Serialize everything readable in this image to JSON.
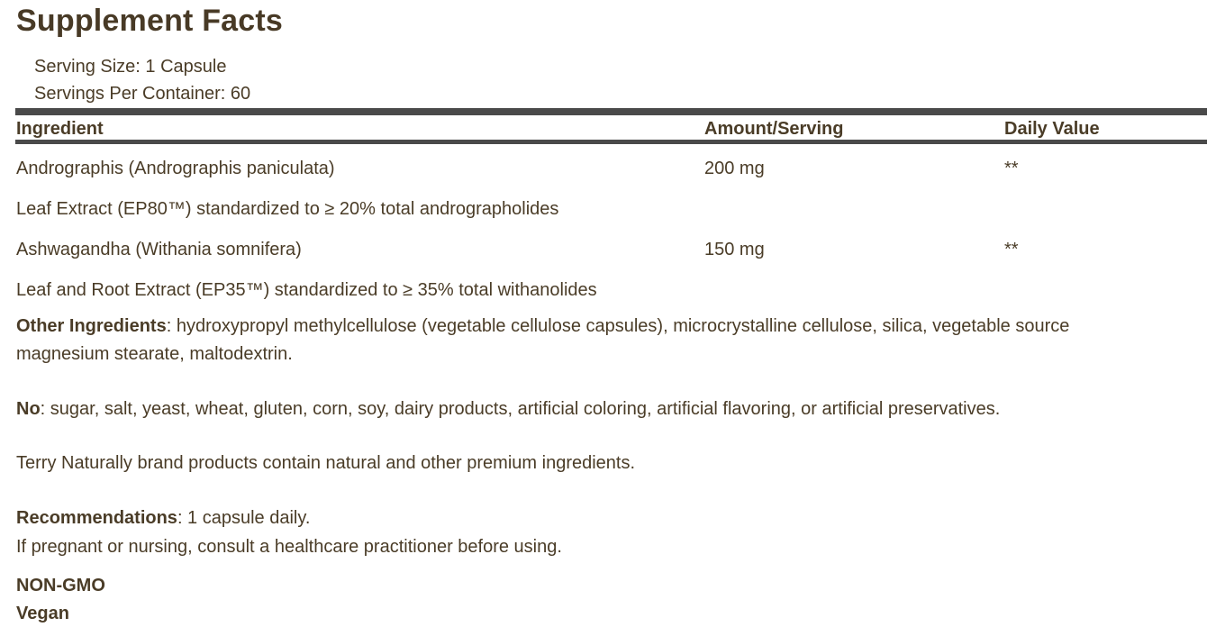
{
  "title": "Supplement Facts",
  "serving": {
    "size": "Serving Size: 1 Capsule",
    "per_container": "Servings Per Container: 60"
  },
  "table": {
    "headers": {
      "ingredient": "Ingredient",
      "amount": "Amount/Serving",
      "daily_value": "Daily Value"
    },
    "rows": [
      {
        "ingredient": "Andrographis (Andrographis paniculata)",
        "amount": "200 mg",
        "daily_value": "**"
      },
      {
        "ingredient": "Leaf Extract (EP80™) standardized to ≥ 20% total andrographolides",
        "amount": "",
        "daily_value": ""
      },
      {
        "ingredient": "Ashwagandha (Withania somnifera)",
        "amount": "150 mg",
        "daily_value": "**"
      },
      {
        "ingredient": "Leaf and Root Extract (EP35™) standardized to ≥ 35% total withanolides",
        "amount": "",
        "daily_value": ""
      }
    ]
  },
  "other_ingredients": {
    "label": "Other Ingredients",
    "text": ": hydroxypropyl methylcellulose (vegetable cellulose capsules), microcrystalline cellulose, silica, vegetable source magnesium stearate, maltodextrin."
  },
  "no_statement": {
    "label": "No",
    "text": ": sugar, salt, yeast, wheat, gluten, corn, soy, dairy products, artificial coloring, artificial flavoring, or artificial preservatives."
  },
  "brand_statement": "Terry Naturally brand products contain natural and other premium ingredients.",
  "recommendations": {
    "label": "Recommendations",
    "text": ": 1 capsule daily.",
    "warning": "If pregnant or nursing, consult a healthcare practitioner before using."
  },
  "badges": {
    "non_gmo": "NON-GMO",
    "vegan": "Vegan"
  },
  "colors": {
    "text": "#4a3c27",
    "bar": "#4a4a4a",
    "background": "#ffffff"
  }
}
